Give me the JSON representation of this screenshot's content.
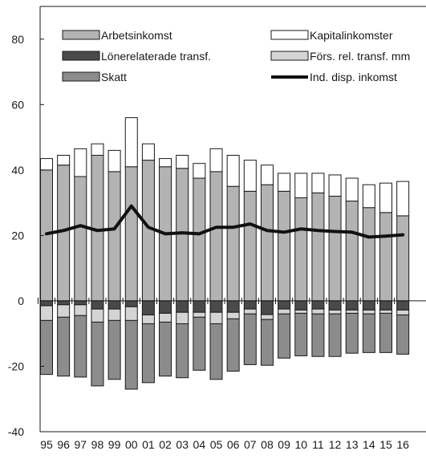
{
  "chart_data": {
    "type": "bar",
    "categories": [
      "95",
      "96",
      "97",
      "98",
      "99",
      "00",
      "01",
      "02",
      "03",
      "04",
      "05",
      "06",
      "07",
      "08",
      "09",
      "10",
      "11",
      "12",
      "13",
      "14",
      "15",
      "16"
    ],
    "ylim": [
      -40,
      90
    ],
    "yticks": [
      80,
      60,
      40,
      20,
      0,
      -20,
      -40
    ],
    "grid": false,
    "legend_position": "top",
    "series": [
      {
        "name": "Arbetsinkomst",
        "kind": "stack-positive",
        "color": "#b3b3b3",
        "values": [
          40,
          41.5,
          38,
          44.5,
          39.5,
          41,
          43,
          41,
          40.5,
          37.5,
          39.5,
          35,
          33.5,
          35.5,
          33.5,
          31.5,
          33,
          32,
          30.5,
          28.5,
          27,
          26
        ]
      },
      {
        "name": "Kapitalinkomster",
        "kind": "stack-positive",
        "color": "#ffffff",
        "values": [
          3.5,
          3,
          8.5,
          3.5,
          6.5,
          15,
          5,
          2.5,
          4,
          4.5,
          7,
          9.5,
          9.5,
          6,
          5.5,
          7.5,
          6,
          6.5,
          7,
          7,
          9,
          10.5
        ]
      },
      {
        "name": "Lönerelaterade transf.",
        "kind": "stack-negative",
        "color": "#4a4a4a",
        "values": [
          -1.5,
          -1.2,
          -1.2,
          -2.5,
          -2.5,
          -1.8,
          -4.3,
          -3.8,
          -3.5,
          -3.5,
          -3.5,
          -3.5,
          -2.5,
          -4.2,
          -2.5,
          -2.8,
          -2.5,
          -2.8,
          -2.8,
          -2.8,
          -2.8,
          -2.8
        ]
      },
      {
        "name": "Förs. rel. transf. mm",
        "kind": "stack-negative",
        "color": "#d4d4d4",
        "values": [
          -4.5,
          -3.8,
          -3.3,
          -4,
          -3.5,
          -4.2,
          -2.7,
          -2.7,
          -3.5,
          -1.5,
          -3.5,
          -2,
          -1.5,
          -1.5,
          -1.5,
          -1,
          -1.5,
          -1.2,
          -1,
          -1.2,
          -1,
          -1.5
        ]
      },
      {
        "name": "Skatt",
        "kind": "stack-negative",
        "color": "#8c8c8c",
        "values": [
          -16.5,
          -18,
          -18.8,
          -19.5,
          -18,
          -21,
          -18,
          -16.5,
          -16.5,
          -16.2,
          -17,
          -16,
          -15.5,
          -14,
          -13.5,
          -13,
          -13,
          -13,
          -12.2,
          -11.8,
          -12,
          -12
        ]
      },
      {
        "name": "Ind. disp. inkomst",
        "kind": "line",
        "color": "#111111",
        "values": [
          20.5,
          21.5,
          23,
          21.5,
          22,
          29,
          22.5,
          20.5,
          20.8,
          20.5,
          22.5,
          22.5,
          23.5,
          21.5,
          21,
          22,
          21.5,
          21.2,
          21,
          19.5,
          19.8,
          20.2
        ]
      }
    ]
  }
}
